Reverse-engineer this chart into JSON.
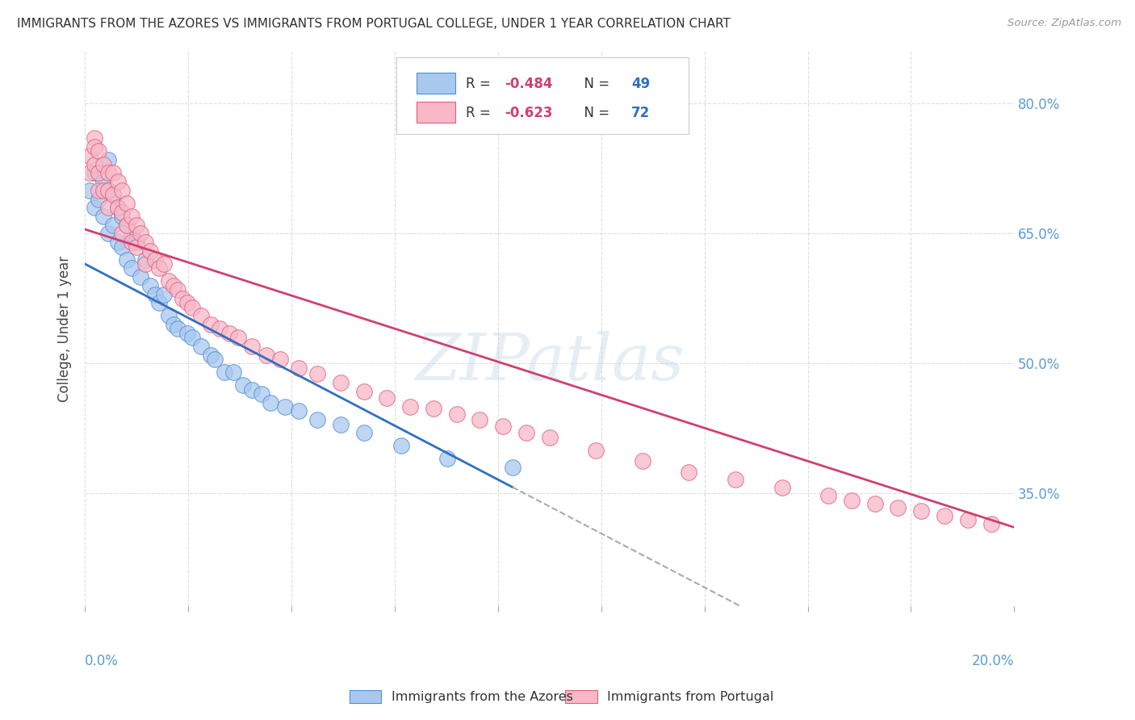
{
  "title": "IMMIGRANTS FROM THE AZORES VS IMMIGRANTS FROM PORTUGAL COLLEGE, UNDER 1 YEAR CORRELATION CHART",
  "source": "Source: ZipAtlas.com",
  "ylabel": "College, Under 1 year",
  "ylabel_ticks": [
    "35.0%",
    "50.0%",
    "65.0%",
    "80.0%"
  ],
  "ylabel_tick_vals": [
    0.35,
    0.5,
    0.65,
    0.8
  ],
  "xmin": 0.0,
  "xmax": 0.2,
  "ymin": 0.22,
  "ymax": 0.86,
  "series": [
    {
      "name": "Immigrants from the Azores",
      "R": -0.484,
      "N": 49,
      "color": "#A8C8F0",
      "edge_color": "#5090D0",
      "line_color": "#3070C0",
      "x": [
        0.001,
        0.002,
        0.002,
        0.003,
        0.003,
        0.004,
        0.004,
        0.005,
        0.005,
        0.005,
        0.006,
        0.006,
        0.007,
        0.007,
        0.008,
        0.008,
        0.009,
        0.009,
        0.01,
        0.01,
        0.011,
        0.012,
        0.013,
        0.014,
        0.015,
        0.016,
        0.017,
        0.018,
        0.019,
        0.02,
        0.022,
        0.023,
        0.025,
        0.027,
        0.028,
        0.03,
        0.032,
        0.034,
        0.036,
        0.038,
        0.04,
        0.043,
        0.046,
        0.05,
        0.055,
        0.06,
        0.068,
        0.078,
        0.092
      ],
      "y": [
        0.7,
        0.72,
        0.68,
        0.72,
        0.69,
        0.71,
        0.67,
        0.735,
        0.7,
        0.65,
        0.695,
        0.66,
        0.68,
        0.64,
        0.67,
        0.635,
        0.66,
        0.62,
        0.65,
        0.61,
        0.64,
        0.6,
        0.62,
        0.59,
        0.58,
        0.57,
        0.58,
        0.555,
        0.545,
        0.54,
        0.535,
        0.53,
        0.52,
        0.51,
        0.505,
        0.49,
        0.49,
        0.475,
        0.47,
        0.465,
        0.455,
        0.45,
        0.445,
        0.435,
        0.43,
        0.42,
        0.405,
        0.39,
        0.38
      ]
    },
    {
      "name": "Immigrants from Portugal",
      "R": -0.623,
      "N": 72,
      "color": "#F8B8C8",
      "edge_color": "#E06080",
      "line_color": "#D04070",
      "x": [
        0.001,
        0.001,
        0.002,
        0.002,
        0.002,
        0.003,
        0.003,
        0.003,
        0.004,
        0.004,
        0.005,
        0.005,
        0.005,
        0.006,
        0.006,
        0.007,
        0.007,
        0.008,
        0.008,
        0.008,
        0.009,
        0.009,
        0.01,
        0.01,
        0.011,
        0.011,
        0.012,
        0.013,
        0.013,
        0.014,
        0.015,
        0.016,
        0.017,
        0.018,
        0.019,
        0.02,
        0.021,
        0.022,
        0.023,
        0.025,
        0.027,
        0.029,
        0.031,
        0.033,
        0.036,
        0.039,
        0.042,
        0.046,
        0.05,
        0.055,
        0.06,
        0.065,
        0.07,
        0.075,
        0.08,
        0.085,
        0.09,
        0.095,
        0.1,
        0.11,
        0.12,
        0.13,
        0.14,
        0.15,
        0.16,
        0.165,
        0.17,
        0.175,
        0.18,
        0.185,
        0.19,
        0.195
      ],
      "y": [
        0.74,
        0.72,
        0.76,
        0.75,
        0.73,
        0.745,
        0.72,
        0.7,
        0.73,
        0.7,
        0.72,
        0.7,
        0.68,
        0.72,
        0.695,
        0.71,
        0.68,
        0.7,
        0.675,
        0.65,
        0.685,
        0.66,
        0.67,
        0.64,
        0.66,
        0.635,
        0.65,
        0.64,
        0.615,
        0.63,
        0.62,
        0.61,
        0.615,
        0.595,
        0.59,
        0.585,
        0.575,
        0.57,
        0.565,
        0.555,
        0.545,
        0.54,
        0.535,
        0.53,
        0.52,
        0.51,
        0.505,
        0.495,
        0.488,
        0.478,
        0.468,
        0.46,
        0.45,
        0.448,
        0.442,
        0.435,
        0.428,
        0.42,
        0.415,
        0.4,
        0.388,
        0.375,
        0.366,
        0.357,
        0.348,
        0.342,
        0.338,
        0.334,
        0.33,
        0.324,
        0.32,
        0.315
      ]
    }
  ],
  "watermark": "ZIPatlas",
  "background_color": "#FFFFFF",
  "grid_color": "#DDDDDD",
  "blue_line_intercept": 0.615,
  "blue_line_slope": -2.8,
  "pink_line_intercept": 0.655,
  "pink_line_slope": -1.72
}
